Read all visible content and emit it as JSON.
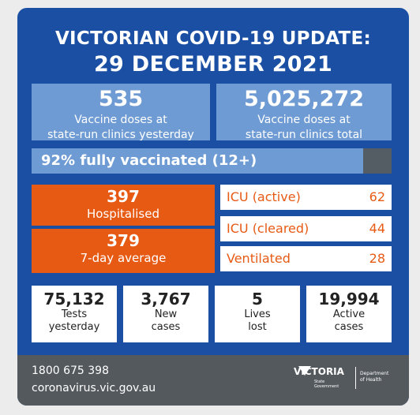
{
  "header": {
    "line1": "VICTORIAN COVID-19 UPDATE:",
    "line2": "29 DECEMBER 2021"
  },
  "vaccine": {
    "yesterday": {
      "number": "535",
      "label_line1": "Vaccine doses at",
      "label_line2": "state-run clinics yesterday"
    },
    "total": {
      "number": "5,025,272",
      "label_line1": "Vaccine doses at",
      "label_line2": "state-run clinics total"
    }
  },
  "fully_vaccinated": {
    "label": "92% fully vaccinated (12+)",
    "percent": 92
  },
  "hospital": {
    "hospitalised": {
      "number": "397",
      "label": "Hospitalised"
    },
    "average": {
      "number": "379",
      "label": "7-day average"
    }
  },
  "icu": [
    {
      "label": "ICU (active)",
      "value": "62"
    },
    {
      "label": "ICU (cleared)",
      "value": "44"
    },
    {
      "label": "Ventilated",
      "value": "28"
    }
  ],
  "stats": [
    {
      "number": "75,132",
      "line1": "Tests",
      "line2": "yesterday"
    },
    {
      "number": "3,767",
      "line1": "New",
      "line2": "cases"
    },
    {
      "number": "5",
      "line1": "Lives",
      "line2": "lost"
    },
    {
      "number": "19,994",
      "line1": "Active",
      "line2": "cases"
    }
  ],
  "footer": {
    "phone": "1800 675 398",
    "website": "coronavirus.vic.gov.au",
    "logo_main": "VICTORIA",
    "logo_sub1": "State",
    "logo_sub2": "Government",
    "dept_line1": "Department",
    "dept_line2": "of Health"
  },
  "colors": {
    "background": "#1a4fa3",
    "light_blue": "#6e9bd3",
    "orange": "#e75a14",
    "footer": "#54595e"
  }
}
